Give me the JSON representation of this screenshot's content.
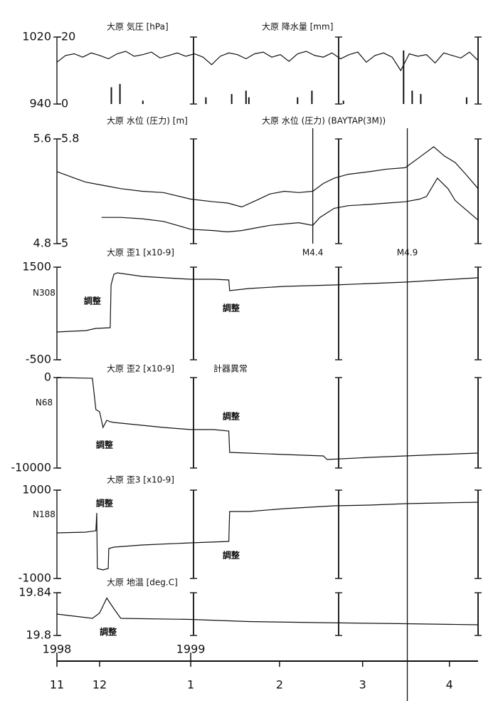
{
  "chart_data": [
    {
      "type": "line",
      "titles": [
        "大原 気圧 [hPa]",
        "大原 降水量 [mm]"
      ],
      "ylim": [
        940,
        1020
      ],
      "yticks": [
        940,
        1020
      ],
      "y2lim": [
        0,
        20
      ],
      "y2ticks": [
        0,
        20
      ],
      "series": [
        {
          "color": "#111111",
          "x": [
            0,
            3,
            6,
            9,
            12,
            15,
            18,
            21,
            24,
            27,
            30,
            33,
            36,
            39,
            42,
            45,
            48,
            51,
            54,
            57,
            60,
            63,
            66,
            69,
            72,
            75,
            78,
            81,
            84,
            87,
            90,
            93,
            96,
            99,
            102,
            105,
            108,
            111,
            114,
            117,
            120,
            123,
            126,
            129,
            132,
            135,
            138,
            141,
            144,
            147
          ],
          "values": [
            990,
            998,
            1000,
            996,
            1001,
            998,
            994,
            1000,
            1003,
            997,
            999,
            1002,
            995,
            998,
            1001,
            997,
            1000,
            996,
            987,
            997,
            1001,
            999,
            994,
            1000,
            1002,
            996,
            999,
            991,
            1000,
            1003,
            998,
            996,
            1001,
            994,
            999,
            1002,
            990,
            998,
            1001,
            996,
            980,
            1000,
            997,
            999,
            989,
            1001,
            998,
            995,
            1002,
            992
          ]
        },
        {
          "kind": "bar",
          "axis": "y2",
          "color": "#111111",
          "x": [
            19,
            22,
            30,
            52,
            61,
            66,
            67,
            84,
            89,
            100,
            121,
            124,
            127,
            143
          ],
          "values": [
            5,
            6,
            1,
            2,
            3,
            4,
            2,
            2,
            4,
            1,
            16,
            4,
            3,
            2
          ]
        }
      ]
    },
    {
      "type": "line",
      "titles": [
        "大原 水位 (圧力) [m]",
        "大原 水位 (圧力) (BAYTAP(3M))"
      ],
      "ylim": [
        4.8,
        5.6
      ],
      "yticks": [
        4.8,
        5.6
      ],
      "y2lim": [
        5,
        5.8
      ],
      "y2ticks": [
        5,
        5.8
      ],
      "series": [
        {
          "color": "#111111",
          "x": [
            0,
            5,
            10,
            17.4,
            22.3,
            29.8,
            37.2,
            46.7,
            54.6,
            59.6,
            64.5,
            69.5,
            74.4,
            79.4,
            84.4,
            89.3,
            93,
            96.8,
            101.7,
            109.2,
            115.4,
            121.6,
            126.6,
            131.5,
            135.2,
            139,
            142.7,
            147
          ],
          "values": [
            5.35,
            5.31,
            5.27,
            5.24,
            5.22,
            5.2,
            5.19,
            5.14,
            5.12,
            5.11,
            5.08,
            5.13,
            5.18,
            5.2,
            5.19,
            5.2,
            5.26,
            5.3,
            5.33,
            5.35,
            5.37,
            5.38,
            5.46,
            5.54,
            5.47,
            5.42,
            5.33,
            5.22
          ]
        },
        {
          "axis": "y2",
          "color": "#111111",
          "x": [
            15.6,
            22.3,
            29.8,
            37.2,
            46.7,
            54.6,
            59.6,
            64.5,
            69.5,
            74.4,
            79.4,
            84.4,
            89.3,
            91.8,
            96.8,
            101.7,
            109.2,
            115.4,
            121.6,
            126.6,
            129,
            132.8,
            136.5,
            139,
            142.7,
            147
          ],
          "values": [
            5.2,
            5.2,
            5.19,
            5.17,
            5.11,
            5.1,
            5.09,
            5.1,
            5.12,
            5.14,
            5.15,
            5.16,
            5.14,
            5.2,
            5.27,
            5.29,
            5.3,
            5.31,
            5.32,
            5.34,
            5.36,
            5.5,
            5.42,
            5.33,
            5.26,
            5.18
          ]
        }
      ]
    },
    {
      "type": "line",
      "titles": [
        "大原 歪1 [x10-9]"
      ],
      "y_label": "N308",
      "ylim": [
        -500,
        1500
      ],
      "yticks": [
        -500,
        1500
      ],
      "series": [
        {
          "color": "#111111",
          "x": [
            0,
            5,
            10,
            13.6,
            18.6,
            18.9,
            19.9,
            21.1,
            29.8,
            42.2,
            46.7,
            54.6,
            60,
            60.3,
            67,
            79.4,
            96.8,
            109.2,
            121.6,
            134,
            147
          ],
          "values": [
            100,
            115,
            130,
            177,
            192,
            1115,
            1346,
            1377,
            1300,
            1254,
            1238,
            1238,
            1223,
            992,
            1038,
            1085,
            1115,
            1146,
            1177,
            1223,
            1270
          ]
        }
      ],
      "annotations": [
        {
          "text": "調整",
          "x": 12.4,
          "y": 762
        },
        {
          "text": "調整",
          "x": 60.8,
          "y": 608
        }
      ]
    },
    {
      "type": "line",
      "titles": [
        "大原 歪2 [x10-9]",
        "計器異常"
      ],
      "y_label": "N68",
      "ylim": [
        -10000,
        0
      ],
      "yticks": [
        -10000,
        0
      ],
      "series": [
        {
          "color": "#111111",
          "x": [
            0,
            12.4,
            13.6,
            14.9,
            16.1,
            17.4,
            18.6,
            19.9,
            29.8,
            37.2,
            46.7,
            54.6,
            60,
            60.3,
            79.4,
            93,
            94.3,
            109.2,
            121.6,
            134,
            147
          ],
          "values": [
            0,
            -79,
            -3543,
            -3780,
            -5512,
            -4724,
            -4882,
            -4961,
            -5276,
            -5512,
            -5748,
            -5748,
            -5906,
            -8268,
            -8504,
            -8661,
            -9055,
            -8819,
            -8661,
            -8504,
            -8346
          ]
        }
      ],
      "annotations": [
        {
          "text": "調整",
          "x": 16.6,
          "y": -7480
        },
        {
          "text": "調整",
          "x": 60.8,
          "y": -4331
        }
      ]
    },
    {
      "type": "line",
      "titles": [
        "大原 歪3 [x10-9]"
      ],
      "y_label": "N188",
      "ylim": [
        -1000,
        1000
      ],
      "yticks": [
        -1000,
        1000
      ],
      "series": [
        {
          "color": "#111111",
          "x": [
            0,
            10,
            13.6,
            13.9,
            14.1,
            16.1,
            17.9,
            18.1,
            19.9,
            29.8,
            46.7,
            60,
            60.3,
            67,
            79.4,
            96.8,
            109.2,
            121.6,
            134,
            147
          ],
          "values": [
            32,
            48,
            81,
            484,
            -774,
            -806,
            -774,
            -323,
            -290,
            -242,
            -194,
            -161,
            516,
            516,
            581,
            645,
            661,
            694,
            710,
            726
          ]
        }
      ],
      "annotations": [
        {
          "text": "調整",
          "x": 16.6,
          "y": 694
        },
        {
          "text": "調整",
          "x": 60.8,
          "y": -484
        }
      ]
    },
    {
      "type": "line",
      "titles": [
        "大原 地温 [deg.C]"
      ],
      "ylim": [
        19.8,
        19.84
      ],
      "yticks": [
        19.8,
        19.84
      ],
      "series": [
        {
          "color": "#111111",
          "x": [
            0,
            12.4,
            14.9,
            17.4,
            19.9,
            22.3,
            46.7,
            67,
            91.8,
            121.6,
            147
          ],
          "values": [
            19.82,
            19.816,
            19.821,
            19.835,
            19.825,
            19.816,
            19.815,
            19.813,
            19.812,
            19.811,
            19.81
          ]
        }
      ],
      "annotations": [
        {
          "text": "調整",
          "x": 17.9,
          "y": 19.803
        }
      ]
    }
  ],
  "x_axis": {
    "xlim": [
      0,
      147
    ],
    "xticks": [
      {
        "value": 0,
        "label": "11"
      },
      {
        "value": 14.9,
        "label": "12"
      },
      {
        "value": 46.7,
        "label": "1"
      },
      {
        "value": 77.7,
        "label": "2"
      },
      {
        "value": 106.7,
        "label": "3"
      },
      {
        "value": 137,
        "label": "4"
      }
    ],
    "year_labels": [
      {
        "value": 0,
        "label": "1998"
      },
      {
        "value": 46.7,
        "label": "1999"
      }
    ]
  },
  "events": [
    {
      "label": "M4.4",
      "x": 89.3
    },
    {
      "label": "M4.9",
      "x": 122.3
    }
  ]
}
